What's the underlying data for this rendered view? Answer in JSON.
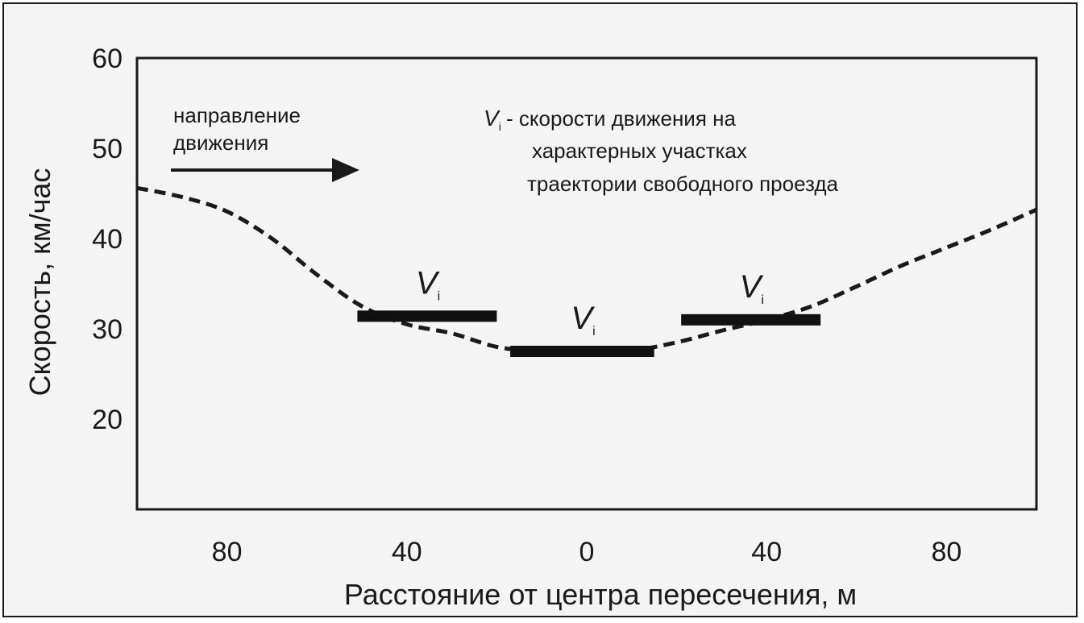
{
  "chart_data": {
    "type": "line",
    "xlabel": "Расстояние от центра пересечения, м",
    "ylabel": "Скорость, км/час",
    "x_tick_labels": [
      "80",
      "40",
      "0",
      "40",
      "80"
    ],
    "x_tick_positions": [
      -80,
      -40,
      0,
      40,
      80
    ],
    "y_tick_labels": [
      "20",
      "30",
      "40",
      "50",
      "60"
    ],
    "y_tick_positions": [
      20,
      30,
      40,
      50,
      60
    ],
    "xlim": [
      -100,
      100
    ],
    "ylim": [
      10,
      60
    ],
    "grid": true,
    "series": [
      {
        "style": "dashed",
        "x": [
          -100,
          -90,
          -80,
          -70,
          -60,
          -50,
          -40,
          -30,
          -20,
          -10,
          0,
          10,
          20,
          30,
          40,
          50,
          60,
          70,
          80,
          90,
          100
        ],
        "y": [
          45.6,
          44.6,
          43,
          40,
          36,
          32.5,
          30.5,
          29.5,
          28,
          27.5,
          27.5,
          27.6,
          28.5,
          29.8,
          31,
          32.5,
          34.7,
          37,
          39,
          41,
          43.2
        ]
      }
    ],
    "segments": [
      {
        "label": "V",
        "subscript": "i",
        "x_start": -51,
        "x_end": -20,
        "y": 31.4
      },
      {
        "label": "V",
        "subscript": "i",
        "x_start": -17,
        "x_end": 15,
        "y": 27.5
      },
      {
        "label": "V",
        "subscript": "i",
        "x_start": 21,
        "x_end": 52,
        "y": 31
      }
    ],
    "annotations": {
      "direction_label": [
        "направление",
        "движения"
      ],
      "legend_symbol": "V",
      "legend_subscript": "i",
      "legend_lines": [
        "- скорости движения на",
        "характерных участках",
        "траектории свободного проезда"
      ]
    }
  }
}
